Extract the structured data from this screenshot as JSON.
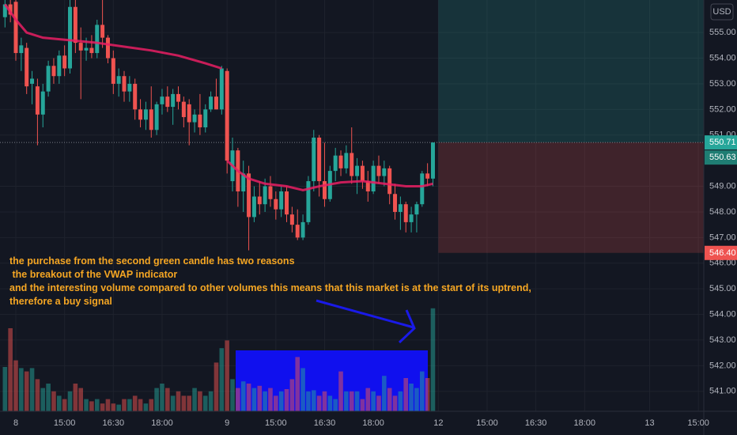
{
  "chart_data": {
    "type": "candlestick",
    "currency": "USD",
    "ylim": [
      540.22,
      556.27
    ],
    "yticks": [
      {
        "value": 541,
        "label": "541.00"
      },
      {
        "value": 542,
        "label": "542.00"
      },
      {
        "value": 543,
        "label": "543.00"
      },
      {
        "value": 544,
        "label": "544.00"
      },
      {
        "value": 545,
        "label": "545.00"
      },
      {
        "value": 546,
        "label": "546.00"
      },
      {
        "value": 547,
        "label": "547.00"
      },
      {
        "value": 548,
        "label": "548.00"
      },
      {
        "value": 549,
        "label": "549.00"
      },
      {
        "value": 551,
        "label": "551.00"
      },
      {
        "value": 552,
        "label": "552.00"
      },
      {
        "value": 553,
        "label": "553.00"
      },
      {
        "value": 554,
        "label": "554.00"
      },
      {
        "value": 555,
        "label": "555.00"
      }
    ],
    "xlim": [
      -2.92,
      127.0
    ],
    "xticks": [
      {
        "value": 0,
        "label": "8"
      },
      {
        "value": 9,
        "label": "15:00"
      },
      {
        "value": 18,
        "label": "16:30"
      },
      {
        "value": 27,
        "label": "18:00"
      },
      {
        "value": 39,
        "label": "9"
      },
      {
        "value": 48,
        "label": "15:00"
      },
      {
        "value": 57,
        "label": "16:30"
      },
      {
        "value": 66,
        "label": "18:00"
      },
      {
        "value": 78,
        "label": "12"
      },
      {
        "value": 87,
        "label": "15:00"
      },
      {
        "value": 96,
        "label": "16:30"
      },
      {
        "value": 105,
        "label": "18:00"
      },
      {
        "value": 117,
        "label": "13"
      },
      {
        "value": 126,
        "label": "15:00"
      }
    ],
    "grid": true,
    "x_start": -2,
    "up_color": "#26a69a",
    "down_color": "#ef5350",
    "candles": [
      [
        555.6,
        556.3,
        555.2,
        556.1
      ],
      [
        556.1,
        556.3,
        555.4,
        555.7
      ],
      [
        556.2,
        556.3,
        553.9,
        554.2
      ],
      [
        554.2,
        554.8,
        553.5,
        554.5
      ],
      [
        554.4,
        554.6,
        552.6,
        552.9
      ],
      [
        553.0,
        553.5,
        552.2,
        553.2
      ],
      [
        552.9,
        553.2,
        550.6,
        551.8
      ],
      [
        551.8,
        553.0,
        551.3,
        552.7
      ],
      [
        552.7,
        553.9,
        552.5,
        553.7
      ],
      [
        553.7,
        554.0,
        553.0,
        553.3
      ],
      [
        553.3,
        554.3,
        553.0,
        554.1
      ],
      [
        554.1,
        554.5,
        553.3,
        553.6
      ],
      [
        553.6,
        556.3,
        553.4,
        556.0
      ],
      [
        556.0,
        556.3,
        554.2,
        554.6
      ],
      [
        554.6,
        555.2,
        552.4,
        554.3
      ],
      [
        554.3,
        554.8,
        553.9,
        554.4
      ],
      [
        554.4,
        554.9,
        554.0,
        554.2
      ],
      [
        554.2,
        555.5,
        554.0,
        555.3
      ],
      [
        555.3,
        556.3,
        554.4,
        554.8
      ],
      [
        554.8,
        554.9,
        553.8,
        554.0
      ],
      [
        554.0,
        554.3,
        552.6,
        553.0
      ],
      [
        553.0,
        553.6,
        552.5,
        553.3
      ],
      [
        553.3,
        553.5,
        552.3,
        552.7
      ],
      [
        552.7,
        553.3,
        552.3,
        553.0
      ],
      [
        553.0,
        553.2,
        551.6,
        552.0
      ],
      [
        552.0,
        552.4,
        551.3,
        551.6
      ],
      [
        551.6,
        552.3,
        551.2,
        552.0
      ],
      [
        552.0,
        552.9,
        550.9,
        551.2
      ],
      [
        551.2,
        552.3,
        551.0,
        552.2
      ],
      [
        552.2,
        552.8,
        551.8,
        552.5
      ],
      [
        552.5,
        552.9,
        551.9,
        552.1
      ],
      [
        552.1,
        552.8,
        551.4,
        552.6
      ],
      [
        552.6,
        552.9,
        552.0,
        552.3
      ],
      [
        552.3,
        552.5,
        551.3,
        551.7
      ],
      [
        552.2,
        552.4,
        550.6,
        551.5
      ],
      [
        551.5,
        552.0,
        551.1,
        551.8
      ],
      [
        551.8,
        552.6,
        551.0,
        551.3
      ],
      [
        551.3,
        552.2,
        551.1,
        552.0
      ],
      [
        552.0,
        552.7,
        551.9,
        552.5
      ],
      [
        552.5,
        553.2,
        552.0,
        552.0
      ],
      [
        552.0,
        553.7,
        551.8,
        553.6
      ],
      [
        553.5,
        553.6,
        549.5,
        550.0
      ],
      [
        549.2,
        550.9,
        548.8,
        550.4
      ],
      [
        550.4,
        550.5,
        548.2,
        548.8
      ],
      [
        548.8,
        550.0,
        548.0,
        549.5
      ],
      [
        549.5,
        549.8,
        546.5,
        547.8
      ],
      [
        547.8,
        549.0,
        547.6,
        548.6
      ],
      [
        548.6,
        549.2,
        547.9,
        548.3
      ],
      [
        548.3,
        549.3,
        548.0,
        549.0
      ],
      [
        549.0,
        549.4,
        548.2,
        548.5
      ],
      [
        548.5,
        548.8,
        547.7,
        548.1
      ],
      [
        548.1,
        549.0,
        547.8,
        548.8
      ],
      [
        548.8,
        549.0,
        547.6,
        547.9
      ],
      [
        547.9,
        548.2,
        547.2,
        547.5
      ],
      [
        547.5,
        548.1,
        546.9,
        547.0
      ],
      [
        547.0,
        547.9,
        546.9,
        547.6
      ],
      [
        547.6,
        549.4,
        547.5,
        549.2
      ],
      [
        549.2,
        551.2,
        548.8,
        550.9
      ],
      [
        550.9,
        551.0,
        548.6,
        549.2
      ],
      [
        549.2,
        550.7,
        548.2,
        548.5
      ],
      [
        548.5,
        549.8,
        548.4,
        549.6
      ],
      [
        549.6,
        550.5,
        549.2,
        550.2
      ],
      [
        550.2,
        550.4,
        549.4,
        549.7
      ],
      [
        549.7,
        550.6,
        549.5,
        550.3
      ],
      [
        550.3,
        551.3,
        549.1,
        549.4
      ],
      [
        549.4,
        550.1,
        548.7,
        549.8
      ],
      [
        549.8,
        550.0,
        548.9,
        549.2
      ],
      [
        549.2,
        549.6,
        548.4,
        548.8
      ],
      [
        548.8,
        550.0,
        548.7,
        549.8
      ],
      [
        549.8,
        550.2,
        549.1,
        549.4
      ],
      [
        549.4,
        550.0,
        549.0,
        549.7
      ],
      [
        549.7,
        549.8,
        548.3,
        548.7
      ],
      [
        548.7,
        549.1,
        547.7,
        548.0
      ],
      [
        548.0,
        548.6,
        547.3,
        548.3
      ],
      [
        548.3,
        548.4,
        547.2,
        547.6
      ],
      [
        547.6,
        548.2,
        547.2,
        547.9
      ],
      [
        547.9,
        548.4,
        547.2,
        548.3
      ],
      [
        548.3,
        549.6,
        548.2,
        549.5
      ],
      [
        549.5,
        549.9,
        549.0,
        549.3
      ],
      [
        549.3,
        550.7,
        549.0,
        550.71
      ]
    ],
    "volume": [
      40,
      75,
      46,
      39,
      36,
      39,
      29,
      21,
      25,
      18,
      14,
      11,
      18,
      25,
      21,
      11,
      9,
      11,
      7,
      11,
      7,
      6,
      11,
      11,
      14,
      11,
      7,
      11,
      21,
      25,
      21,
      14,
      18,
      14,
      14,
      21,
      18,
      14,
      18,
      44,
      57,
      64,
      29,
      21,
      27,
      25,
      21,
      23,
      18,
      21,
      14,
      18,
      20,
      29,
      49,
      39,
      18,
      19,
      14,
      18,
      14,
      11,
      36,
      18,
      18,
      18,
      11,
      21,
      18,
      14,
      32,
      21,
      14,
      18,
      30,
      25,
      21,
      36,
      30,
      93
    ],
    "vlim": [
      0,
      100
    ],
    "vwap": {
      "color": "#e91e63",
      "x": [
        -2,
        0,
        2,
        5,
        10,
        15,
        20,
        25,
        30,
        35,
        38,
        38.5,
        39,
        41,
        43,
        46,
        50,
        53,
        56,
        60,
        64,
        68,
        72,
        75,
        77
      ],
      "values": [
        556.1,
        555.5,
        555.0,
        554.8,
        554.7,
        554.6,
        554.45,
        554.3,
        554.1,
        553.8,
        553.6,
        null,
        550.0,
        549.6,
        549.3,
        549.1,
        549.0,
        548.85,
        549.0,
        549.15,
        549.2,
        549.1,
        549.0,
        549.0,
        549.1
      ]
    },
    "position": {
      "entry": 550.71,
      "stop": 546.4
    },
    "price_labels": [
      {
        "value": 550.71,
        "label": "550.71",
        "color": "#26a69a"
      },
      {
        "value": 550.63,
        "label": "550.63",
        "color": "#1f7d73"
      },
      {
        "value": 546.4,
        "label": "546.40",
        "color": "#ef5350"
      }
    ],
    "annotation": {
      "lines": [
        "the purchase from the second green candle has two reasons",
        " the breakout of the VWAP indicator",
        "and the interesting volume compared to other volumes this means that this market is at the start of its uptrend,",
        "therefore a buy signal"
      ],
      "color": "#f5a623"
    }
  }
}
